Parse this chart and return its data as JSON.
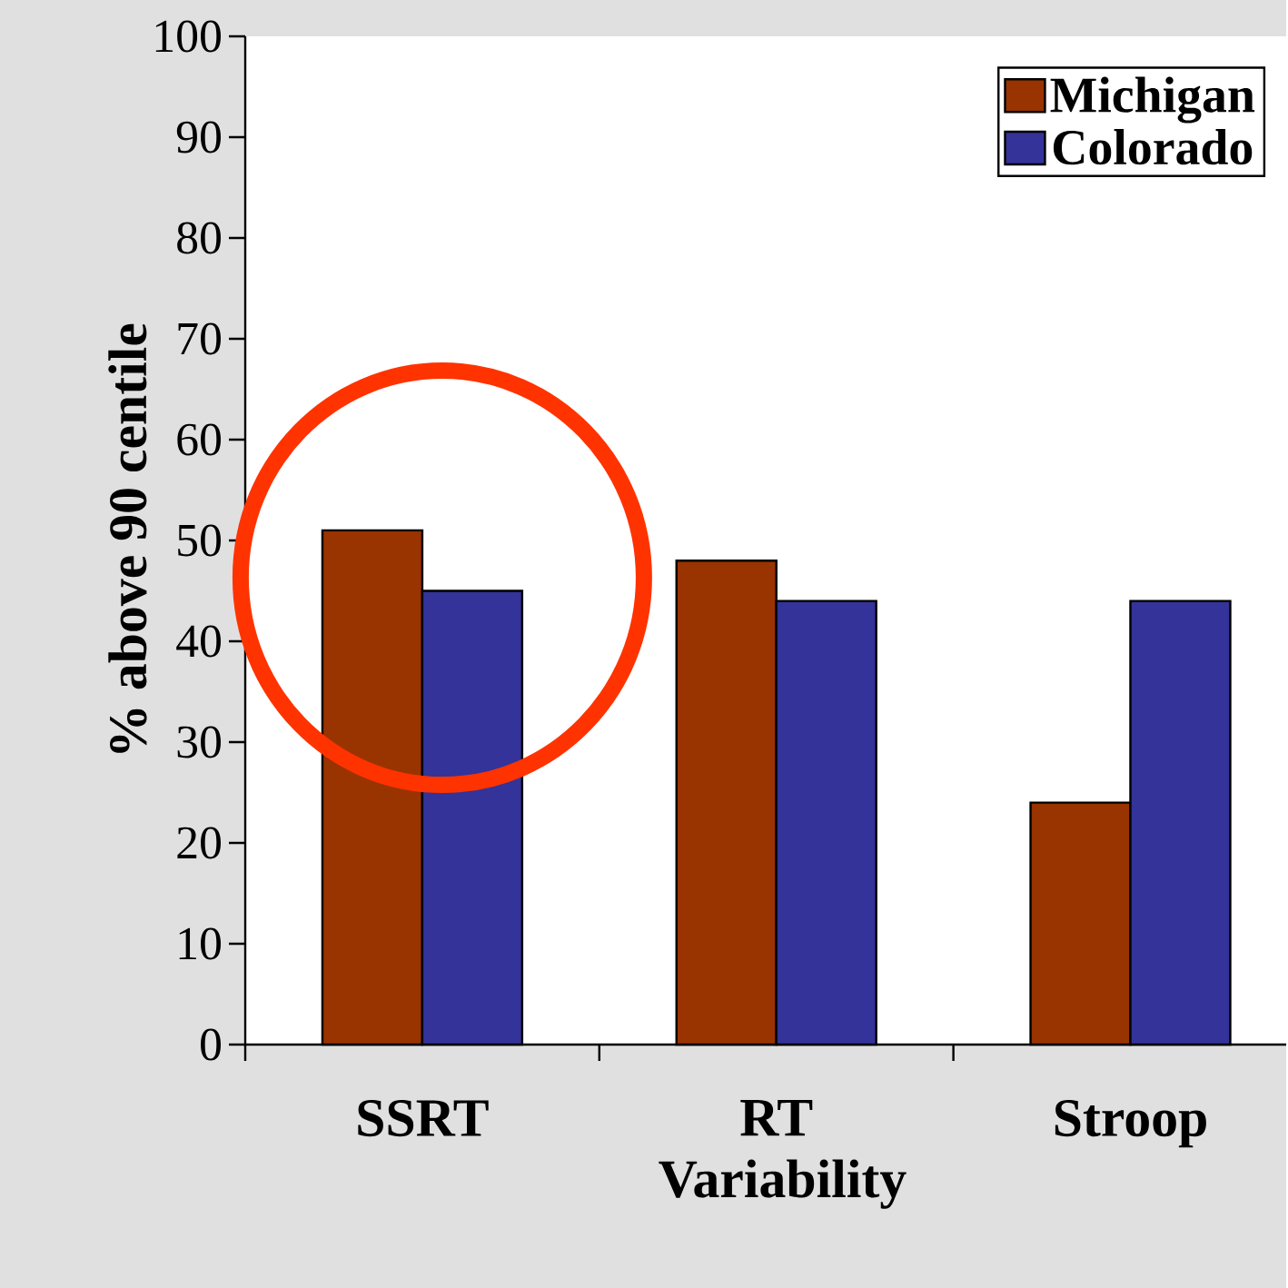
{
  "chart_data": {
    "type": "bar",
    "ylabel": "% above 90 centile",
    "categories": [
      "SSRT",
      "RT Variability",
      "Stroop"
    ],
    "series": [
      {
        "name": "Michigan",
        "color": "#993300",
        "values": [
          51,
          48,
          24
        ]
      },
      {
        "name": "Colorado",
        "color": "#333399",
        "values": [
          45,
          44,
          44
        ]
      }
    ],
    "ylim": [
      0,
      100
    ],
    "yticks": [
      0,
      10,
      20,
      30,
      40,
      50,
      60,
      70,
      80,
      90,
      100
    ],
    "grid": false,
    "legend": "top right"
  }
}
